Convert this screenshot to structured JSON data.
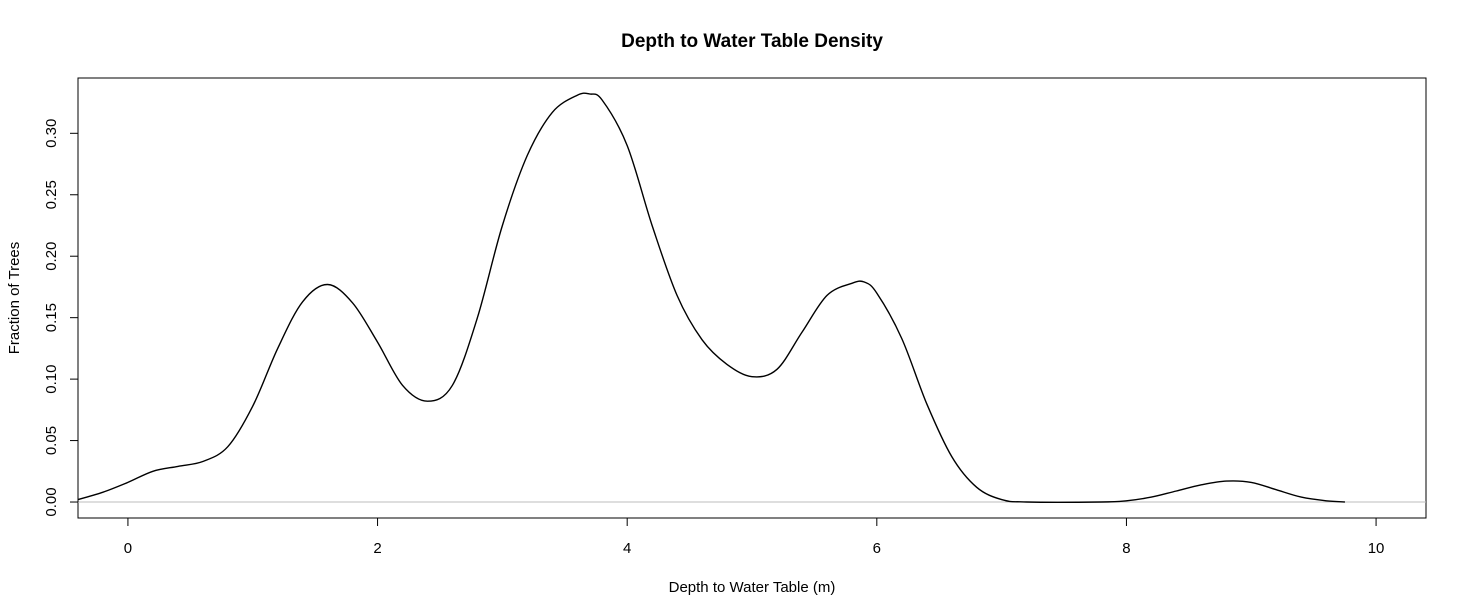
{
  "chart_data": {
    "type": "line",
    "title": "Depth to Water Table Density",
    "xlabel": "Depth to Water Table (m)",
    "ylabel": "Fraction of Trees",
    "xlim": [
      -0.4,
      10.4
    ],
    "ylim": [
      -0.013,
      0.345
    ],
    "x_ticks": [
      0,
      2,
      4,
      6,
      8,
      10
    ],
    "x_tick_labels": [
      "0",
      "2",
      "4",
      "6",
      "8",
      "10"
    ],
    "y_ticks": [
      0.0,
      0.05,
      0.1,
      0.15,
      0.2,
      0.25,
      0.3
    ],
    "y_tick_labels": [
      "0.00",
      "0.05",
      "0.10",
      "0.15",
      "0.20",
      "0.25",
      "0.30"
    ],
    "baseline": 0,
    "grid": false,
    "colors": {
      "line": "#000000",
      "baseline": "#bebebe",
      "frame": "#000000"
    },
    "series": [
      {
        "x": [
          -0.4,
          -0.2,
          0.0,
          0.2,
          0.4,
          0.6,
          0.8,
          1.0,
          1.2,
          1.4,
          1.6,
          1.8,
          2.0,
          2.2,
          2.4,
          2.6,
          2.8,
          3.0,
          3.2,
          3.4,
          3.6,
          3.7,
          3.8,
          4.0,
          4.2,
          4.4,
          4.6,
          4.8,
          5.0,
          5.2,
          5.4,
          5.6,
          5.8,
          5.9,
          6.0,
          6.2,
          6.4,
          6.6,
          6.8,
          7.0,
          7.2,
          7.8,
          8.0,
          8.2,
          8.4,
          8.6,
          8.8,
          9.0,
          9.2,
          9.4,
          9.6,
          9.75
        ],
        "y": [
          0.002,
          0.008,
          0.016,
          0.025,
          0.029,
          0.033,
          0.045,
          0.078,
          0.125,
          0.163,
          0.177,
          0.162,
          0.13,
          0.095,
          0.082,
          0.095,
          0.15,
          0.225,
          0.282,
          0.317,
          0.331,
          0.332,
          0.327,
          0.29,
          0.225,
          0.168,
          0.132,
          0.112,
          0.102,
          0.108,
          0.138,
          0.168,
          0.178,
          0.179,
          0.17,
          0.133,
          0.08,
          0.037,
          0.012,
          0.002,
          0.0,
          0.0,
          0.001,
          0.004,
          0.009,
          0.014,
          0.017,
          0.016,
          0.01,
          0.004,
          0.001,
          0.0
        ]
      }
    ]
  }
}
